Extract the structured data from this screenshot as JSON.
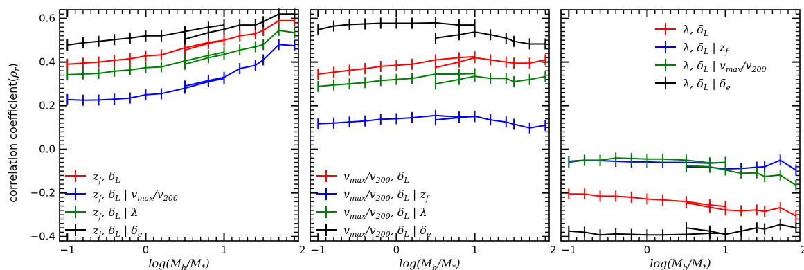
{
  "chart_data": [
    {
      "type": "line",
      "xlabel": "log(M_h/M_*)",
      "ylabel": "correlation coefficient(ρ_r)",
      "xlim": [
        -1.1,
        1.95
      ],
      "ylim": [
        -0.42,
        0.64
      ],
      "xticks": [
        -1,
        0,
        1,
        2
      ],
      "yticks": [
        -0.4,
        -0.2,
        0.0,
        0.2,
        0.4,
        0.6
      ],
      "legend_position": "bottom-left",
      "series": [
        {
          "name": "z_f, δ_L",
          "color": "#ff0000",
          "segments": [
            {
              "x": [
                -1.0,
                -0.8,
                -0.6,
                -0.4,
                -0.2,
                0.0,
                0.2,
                0.5,
                0.8,
                1.0
              ],
              "y": [
                0.39,
                0.395,
                0.4,
                0.408,
                0.415,
                0.428,
                0.433,
                0.465,
                0.49,
                0.5
              ]
            },
            {
              "x": [
                0.5,
                0.8,
                1.0,
                1.2,
                1.4,
                1.5,
                1.7,
                1.9
              ],
              "y": [
                0.455,
                0.485,
                0.5,
                0.52,
                0.53,
                0.545,
                0.59,
                0.59
              ]
            }
          ]
        },
        {
          "name": "z_f, δ_L | v_max/v_200",
          "color": "#0000ff",
          "segments": [
            {
              "x": [
                -1.0,
                -0.8,
                -0.6,
                -0.4,
                -0.2,
                0.0,
                0.2,
                0.5,
                0.8,
                1.0
              ],
              "y": [
                0.228,
                0.225,
                0.226,
                0.23,
                0.235,
                0.25,
                0.255,
                0.28,
                0.31,
                0.325
              ]
            },
            {
              "x": [
                0.5,
                0.8,
                1.0,
                1.2,
                1.4,
                1.5,
                1.7,
                1.9
              ],
              "y": [
                0.29,
                0.315,
                0.33,
                0.37,
                0.385,
                0.41,
                0.48,
                0.475
              ]
            }
          ]
        },
        {
          "name": "z_f, δ_L | λ",
          "color": "#008000",
          "segments": [
            {
              "x": [
                -1.0,
                -0.8,
                -0.6,
                -0.4,
                -0.2,
                0.0,
                0.2,
                0.5,
                0.8,
                1.0
              ],
              "y": [
                0.342,
                0.345,
                0.348,
                0.358,
                0.364,
                0.374,
                0.378,
                0.405,
                0.43,
                0.445
              ]
            },
            {
              "x": [
                0.5,
                0.8,
                1.0,
                1.2,
                1.4,
                1.5,
                1.7,
                1.9
              ],
              "y": [
                0.39,
                0.42,
                0.435,
                0.455,
                0.47,
                0.48,
                0.545,
                0.535
              ]
            }
          ]
        },
        {
          "name": "z_f, δ_L | δ_e",
          "color": "#000000",
          "segments": [
            {
              "x": [
                -1.0,
                -0.8,
                -0.6,
                -0.4,
                -0.2,
                0.0,
                0.2,
                0.5,
                0.8,
                1.0
              ],
              "y": [
                0.478,
                0.488,
                0.495,
                0.503,
                0.51,
                0.52,
                0.52,
                0.54,
                0.56,
                0.57
              ]
            },
            {
              "x": [
                0.5,
                0.8,
                1.0,
                1.2,
                1.4,
                1.5,
                1.7,
                1.9
              ],
              "y": [
                0.505,
                0.535,
                0.55,
                0.57,
                0.57,
                0.585,
                0.62,
                0.62
              ]
            }
          ]
        }
      ]
    },
    {
      "type": "line",
      "xlabel": "log(M_h/M_*)",
      "xlim": [
        -1.1,
        1.95
      ],
      "ylim": [
        -0.42,
        0.64
      ],
      "xticks": [
        -1,
        0,
        1,
        2
      ],
      "legend_position": "bottom-left",
      "series": [
        {
          "name": "v_max/v_200, δ_L",
          "color": "#ff0000",
          "segments": [
            {
              "x": [
                -1.0,
                -0.8,
                -0.6,
                -0.4,
                -0.2,
                0.0,
                0.2,
                0.5,
                0.8,
                1.0
              ],
              "y": [
                0.345,
                0.353,
                0.362,
                0.37,
                0.38,
                0.385,
                0.39,
                0.41,
                0.42,
                0.425
              ]
            },
            {
              "x": [
                0.5,
                0.8,
                1.0,
                1.2,
                1.4,
                1.5,
                1.7,
                1.9
              ],
              "y": [
                0.375,
                0.4,
                0.42,
                0.41,
                0.4,
                0.395,
                0.395,
                0.41
              ]
            }
          ]
        },
        {
          "name": "v_max/v_200, δ_L | z_f",
          "color": "#0000ff",
          "segments": [
            {
              "x": [
                -1.0,
                -0.8,
                -0.6,
                -0.4,
                -0.2,
                0.0,
                0.2,
                0.5,
                0.8,
                1.0
              ],
              "y": [
                0.117,
                0.12,
                0.125,
                0.13,
                0.138,
                0.14,
                0.145,
                0.155,
                0.148,
                0.15
              ]
            },
            {
              "x": [
                0.5,
                0.8,
                1.0,
                1.2,
                1.4,
                1.5,
                1.7,
                1.9
              ],
              "y": [
                0.135,
                0.145,
                0.152,
                0.135,
                0.125,
                0.115,
                0.098,
                0.11
              ]
            }
          ]
        },
        {
          "name": "v_max/v_200, δ_L | λ",
          "color": "#008000",
          "segments": [
            {
              "x": [
                -1.0,
                -0.8,
                -0.6,
                -0.4,
                -0.2,
                0.0,
                0.2,
                0.5,
                0.8,
                1.0
              ],
              "y": [
                0.288,
                0.295,
                0.3,
                0.306,
                0.315,
                0.32,
                0.325,
                0.345,
                0.345,
                0.347
              ]
            },
            {
              "x": [
                0.5,
                0.8,
                1.0,
                1.2,
                1.4,
                1.5,
                1.7,
                1.9
              ],
              "y": [
                0.3,
                0.32,
                0.335,
                0.325,
                0.325,
                0.31,
                0.32,
                0.333
              ]
            }
          ]
        },
        {
          "name": "v_max/v_200, δ_L | δ_e",
          "color": "#000000",
          "segments": [
            {
              "x": [
                -1.0,
                -0.8,
                -0.6,
                -0.4,
                -0.2,
                0.0,
                0.2,
                0.5,
                0.8,
                1.0
              ],
              "y": [
                0.548,
                0.565,
                0.572,
                0.575,
                0.578,
                0.578,
                0.578,
                0.58,
                0.57,
                0.57
              ]
            },
            {
              "x": [
                0.5,
                0.8,
                1.0,
                1.2,
                1.4,
                1.5,
                1.7,
                1.9
              ],
              "y": [
                0.51,
                0.525,
                0.538,
                0.525,
                0.51,
                0.495,
                0.483,
                0.483
              ]
            }
          ]
        }
      ]
    },
    {
      "type": "line",
      "xlabel": "log(M_h/M_*)",
      "xlim": [
        -1.1,
        1.95
      ],
      "ylim": [
        -0.42,
        0.64
      ],
      "xticks": [
        -1,
        0,
        1,
        2
      ],
      "legend_position": "top-right",
      "series": [
        {
          "name": "λ, δ_L",
          "color": "#ff0000",
          "segments": [
            {
              "x": [
                -1.0,
                -0.8,
                -0.6,
                -0.4,
                -0.2,
                0.0,
                0.2,
                0.5,
                0.8,
                1.0
              ],
              "y": [
                -0.205,
                -0.205,
                -0.215,
                -0.215,
                -0.22,
                -0.228,
                -0.232,
                -0.24,
                -0.255,
                -0.262
              ]
            },
            {
              "x": [
                0.5,
                0.8,
                1.0,
                1.2,
                1.4,
                1.5,
                1.7,
                1.9
              ],
              "y": [
                -0.245,
                -0.265,
                -0.278,
                -0.282,
                -0.278,
                -0.285,
                -0.267,
                -0.305
              ]
            }
          ]
        },
        {
          "name": "λ, δ_L | z_f",
          "color": "#0000ff",
          "segments": [
            {
              "x": [
                -1.0,
                -0.8,
                -0.6,
                -0.4,
                -0.2,
                0.0,
                0.2,
                0.5,
                0.8,
                1.0
              ],
              "y": [
                -0.055,
                -0.05,
                -0.052,
                -0.055,
                -0.058,
                -0.058,
                -0.06,
                -0.06,
                -0.064,
                -0.06
              ]
            },
            {
              "x": [
                0.5,
                0.8,
                1.0,
                1.2,
                1.4,
                1.5,
                1.7,
                1.9
              ],
              "y": [
                -0.08,
                -0.082,
                -0.09,
                -0.088,
                -0.082,
                -0.08,
                -0.05,
                -0.095
              ]
            }
          ]
        },
        {
          "name": "λ, δ_L | v_max/v_200",
          "color": "#008000",
          "segments": [
            {
              "x": [
                -1.0,
                -0.8,
                -0.6,
                -0.4,
                -0.2,
                0.0,
                0.2,
                0.5,
                0.8,
                1.0
              ],
              "y": [
                -0.06,
                -0.05,
                -0.05,
                -0.04,
                -0.042,
                -0.045,
                -0.045,
                -0.05,
                -0.062,
                -0.06
              ]
            },
            {
              "x": [
                0.5,
                0.8,
                1.0,
                1.2,
                1.4,
                1.5,
                1.7,
                1.9
              ],
              "y": [
                -0.075,
                -0.08,
                -0.095,
                -0.11,
                -0.108,
                -0.125,
                -0.118,
                -0.165
              ]
            }
          ]
        },
        {
          "name": "λ, δ_L | δ_e",
          "color": "#000000",
          "segments": [
            {
              "x": [
                -1.0,
                -0.8,
                -0.6,
                -0.4,
                -0.2,
                0.0,
                0.2,
                0.5,
                0.8,
                1.0
              ],
              "y": [
                -0.375,
                -0.38,
                -0.392,
                -0.388,
                -0.39,
                -0.392,
                -0.392,
                -0.39,
                -0.385,
                -0.385
              ]
            },
            {
              "x": [
                0.5,
                0.8,
                1.0,
                1.2,
                1.4,
                1.5,
                1.7,
                1.9
              ],
              "y": [
                -0.36,
                -0.375,
                -0.39,
                -0.375,
                -0.36,
                -0.365,
                -0.345,
                -0.36
              ]
            }
          ]
        }
      ]
    }
  ]
}
